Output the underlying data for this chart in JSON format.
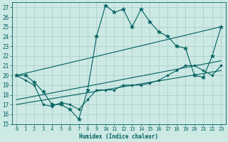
{
  "xlabel": "Humidex (Indice chaleur)",
  "xlim": [
    -0.5,
    23.5
  ],
  "ylim": [
    15,
    27.5
  ],
  "yticks": [
    15,
    16,
    17,
    18,
    19,
    20,
    21,
    22,
    23,
    24,
    25,
    26,
    27
  ],
  "xticks": [
    0,
    1,
    2,
    3,
    4,
    5,
    6,
    7,
    8,
    9,
    10,
    11,
    12,
    13,
    14,
    15,
    16,
    17,
    18,
    19,
    20,
    21,
    22,
    23
  ],
  "bg_color": "#cce9e4",
  "grid_color": "#aaccc7",
  "line_color": "#006060",
  "main_x": [
    0,
    1,
    2,
    3,
    4,
    5,
    6,
    7,
    8,
    9,
    10,
    11,
    12,
    13,
    14,
    15,
    16,
    17,
    18,
    19,
    20,
    21,
    22,
    23
  ],
  "main_y": [
    20.0,
    20.0,
    19.3,
    18.3,
    17.0,
    17.0,
    16.5,
    15.5,
    18.5,
    24.0,
    27.2,
    26.5,
    26.8,
    25.0,
    26.8,
    25.5,
    24.5,
    24.0,
    23.0,
    22.8,
    20.0,
    19.8,
    22.0,
    25.0
  ],
  "line2_x": [
    0,
    1,
    2,
    3,
    4,
    5,
    6,
    7,
    8,
    9,
    10,
    11,
    12,
    13,
    14,
    15,
    16,
    17,
    18,
    19,
    20,
    21,
    22,
    23
  ],
  "line2_y": [
    20.0,
    19.5,
    19.0,
    17.0,
    16.8,
    17.2,
    17.0,
    16.5,
    17.5,
    18.5,
    18.5,
    18.5,
    19.0,
    19.0,
    19.0,
    19.2,
    19.5,
    20.0,
    20.5,
    21.0,
    21.0,
    20.5,
    20.0,
    21.0
  ],
  "trend1_x": [
    0,
    23
  ],
  "trend1_y": [
    20.0,
    25.0
  ],
  "trend2_x": [
    0,
    23
  ],
  "trend2_y": [
    17.5,
    21.5
  ],
  "trend3_x": [
    0,
    23
  ],
  "trend3_y": [
    17.0,
    20.5
  ]
}
